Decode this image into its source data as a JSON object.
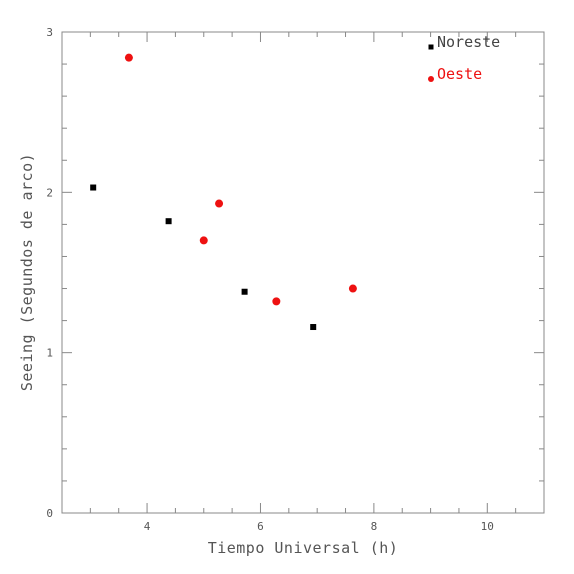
{
  "chart_data": {
    "type": "scatter",
    "xlabel": "Tiempo Universal (h)",
    "ylabel": "Seeing (Segundos de arco)",
    "xlim": [
      2.5,
      11
    ],
    "ylim": [
      0,
      3
    ],
    "xticks": [
      4,
      6,
      8,
      10
    ],
    "yticks": [
      0,
      1,
      2,
      3
    ],
    "xtick_labels": [
      "4",
      "6",
      "8",
      "10"
    ],
    "ytick_labels": [
      "0",
      "1",
      "2",
      "3"
    ],
    "minor_x_step": 0.5,
    "minor_y_step": 0.2,
    "grid": false,
    "legend_position": "top-right",
    "series": [
      {
        "name": "Noreste",
        "color": "#000000",
        "marker": "square",
        "x": [
          3.05,
          4.38,
          5.72,
          6.93
        ],
        "y": [
          2.03,
          1.82,
          1.38,
          1.16
        ]
      },
      {
        "name": "Oeste",
        "color": "#ee1111",
        "marker": "circle",
        "x": [
          3.68,
          5.0,
          5.27,
          6.28,
          7.63
        ],
        "y": [
          2.84,
          1.7,
          1.93,
          1.32,
          1.4
        ]
      }
    ]
  }
}
